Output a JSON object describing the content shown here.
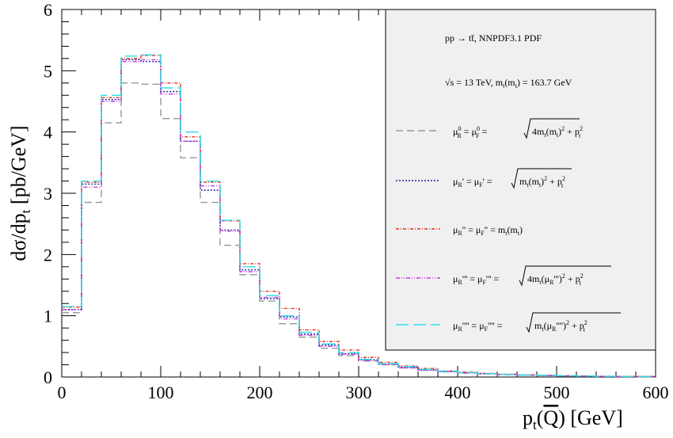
{
  "chart_data": {
    "type": "line",
    "subtype": "histogram-step",
    "xlabel": "p_t(Q̄) [GeV]",
    "ylabel": "dσ/dp_t [pb/GeV]",
    "xlim": [
      0,
      600
    ],
    "ylim": [
      0,
      6
    ],
    "x_ticks": [
      0,
      100,
      200,
      300,
      400,
      500,
      600
    ],
    "y_ticks": [
      0,
      1,
      2,
      3,
      4,
      5,
      6
    ],
    "bin_edges": [
      0,
      20,
      40,
      60,
      80,
      100,
      120,
      140,
      160,
      180,
      200,
      220,
      240,
      260,
      280,
      300,
      320,
      340,
      360,
      380,
      400,
      420,
      440,
      460,
      480,
      500,
      520,
      540,
      560,
      580,
      600
    ],
    "annotations": [
      "pp → tt̄, NNPDF3.1 PDF",
      "√s = 13 TeV, m_t(m_t) = 163.7 GeV"
    ],
    "legend_position": "top-right",
    "grid": false,
    "series": [
      {
        "name": "μ_R^0 = μ_F^0 = √(4m_t(m_t)^2 + p_t^2)",
        "color": "#8f9a9a",
        "dash": "9,5",
        "values": [
          1.05,
          2.85,
          4.15,
          4.8,
          4.78,
          4.22,
          3.58,
          2.85,
          2.15,
          1.67,
          1.24,
          0.87,
          0.65,
          0.47,
          0.35,
          0.26,
          0.2,
          0.15,
          0.11,
          0.085,
          0.065,
          0.05,
          0.038,
          0.03,
          0.022,
          0.017,
          0.013,
          0.01,
          0.008,
          0.006
        ]
      },
      {
        "name": "μ_R' = μ_F' = √(m_t(m_t)^2 + p_t^2)",
        "color": "#1c1f9e",
        "dash": "2,2",
        "values": [
          1.1,
          3.15,
          4.53,
          5.18,
          5.15,
          4.66,
          3.85,
          3.05,
          2.4,
          1.75,
          1.28,
          0.98,
          0.7,
          0.52,
          0.38,
          0.28,
          0.21,
          0.16,
          0.12,
          0.09,
          0.07,
          0.055,
          0.042,
          0.032,
          0.025,
          0.019,
          0.015,
          0.011,
          0.009,
          0.007
        ]
      },
      {
        "name": "μ_R'' = μ_F'' = m_t(m_t)",
        "color": "#e0301e",
        "dash": "4,2,1,2",
        "values": [
          1.14,
          3.18,
          4.56,
          5.2,
          5.25,
          4.8,
          3.92,
          3.18,
          2.55,
          1.85,
          1.4,
          1.12,
          0.77,
          0.58,
          0.44,
          0.32,
          0.24,
          0.18,
          0.14,
          0.1,
          0.08,
          0.06,
          0.046,
          0.035,
          0.027,
          0.021,
          0.016,
          0.012,
          0.01,
          0.008
        ]
      },
      {
        "name": "μ_R''' = μ_F''' = √(4m_t(μ_R''')^2 + p_t^2)",
        "color": "#c83be0",
        "dash": "5,2,1,2,1,2",
        "values": [
          1.1,
          3.1,
          4.5,
          5.15,
          5.18,
          4.62,
          3.85,
          3.12,
          2.38,
          1.72,
          1.3,
          0.95,
          0.68,
          0.5,
          0.37,
          0.27,
          0.21,
          0.15,
          0.115,
          0.088,
          0.068,
          0.052,
          0.04,
          0.031,
          0.024,
          0.018,
          0.014,
          0.011,
          0.008,
          0.006
        ]
      },
      {
        "name": "μ_R'''' = μ_F'''' = √(m_t(μ_R'''')^2 + p_t^2)",
        "color": "#2ae0e8",
        "dash": "16,6",
        "values": [
          1.15,
          3.2,
          4.6,
          5.24,
          5.26,
          4.72,
          4.0,
          3.2,
          2.56,
          1.8,
          1.33,
          1.0,
          0.73,
          0.54,
          0.4,
          0.29,
          0.22,
          0.17,
          0.125,
          0.095,
          0.072,
          0.056,
          0.043,
          0.033,
          0.026,
          0.02,
          0.015,
          0.012,
          0.009,
          0.007
        ]
      }
    ]
  },
  "legend": {
    "annotation_1": "pp  → tt̄, NNPDF3.1 PDF",
    "annotation_2": "√s = 13 TeV, m_t(m_t) = 163.7 GeV"
  }
}
